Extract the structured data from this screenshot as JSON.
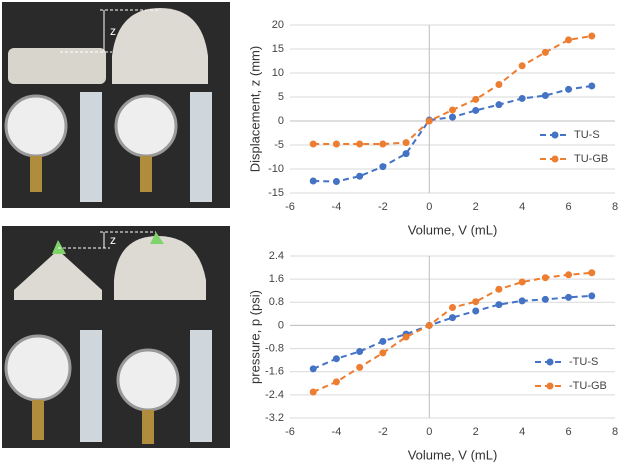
{
  "photo_labels": [
    "z",
    "z"
  ],
  "chart_data": [
    {
      "type": "line",
      "x_label": "Volume, V (mL)",
      "y_label": "Displacement, z (mm)",
      "x": [
        -5,
        -4,
        -3,
        -2,
        -1,
        0,
        1,
        2,
        3,
        4,
        5,
        6,
        7
      ],
      "series": [
        {
          "name": "TU-S",
          "color": "#4472c4",
          "values": [
            -12.5,
            -12.6,
            -11.5,
            -9.5,
            -6.8,
            0.2,
            0.8,
            2.2,
            3.4,
            4.7,
            5.3,
            6.6,
            7.3
          ]
        },
        {
          "name": "TU-GB",
          "color": "#ed7d31",
          "values": [
            -4.8,
            -4.8,
            -4.8,
            -4.8,
            -4.5,
            0,
            2.3,
            4.5,
            7.6,
            11.5,
            14.3,
            16.9,
            17.7
          ]
        }
      ],
      "xlim": [
        -6,
        8
      ],
      "xticks": [
        -6,
        -4,
        -2,
        0,
        2,
        4,
        6,
        8
      ],
      "ylim": [
        -15,
        20
      ],
      "yticks": [
        -15,
        -10,
        -5,
        0,
        5,
        10,
        15,
        20
      ],
      "grid": true
    },
    {
      "type": "line",
      "x_label": "Volume, V (mL)",
      "y_label": "pressure, p (psi)",
      "x": [
        -5,
        -4,
        -3,
        -2,
        -1,
        0,
        1,
        2,
        3,
        4,
        5,
        6,
        7
      ],
      "series": [
        {
          "name": "-TU-S",
          "color": "#4472c4",
          "values": [
            -1.5,
            -1.15,
            -0.9,
            -0.55,
            -0.3,
            0,
            0.27,
            0.5,
            0.72,
            0.85,
            0.9,
            0.97,
            1.02
          ]
        },
        {
          "name": "-TU-GB",
          "color": "#ed7d31",
          "values": [
            -2.3,
            -1.95,
            -1.45,
            -0.95,
            -0.4,
            0,
            0.62,
            0.82,
            1.25,
            1.5,
            1.65,
            1.75,
            1.82
          ]
        }
      ],
      "xlim": [
        -6,
        8
      ],
      "xticks": [
        -6,
        -4,
        -2,
        0,
        2,
        4,
        6,
        8
      ],
      "ylim": [
        -3.2,
        2.4
      ],
      "yticks": [
        -3.2,
        -2.4,
        -1.6,
        -0.8,
        0,
        0.8,
        1.6,
        2.4
      ],
      "grid": true
    }
  ]
}
